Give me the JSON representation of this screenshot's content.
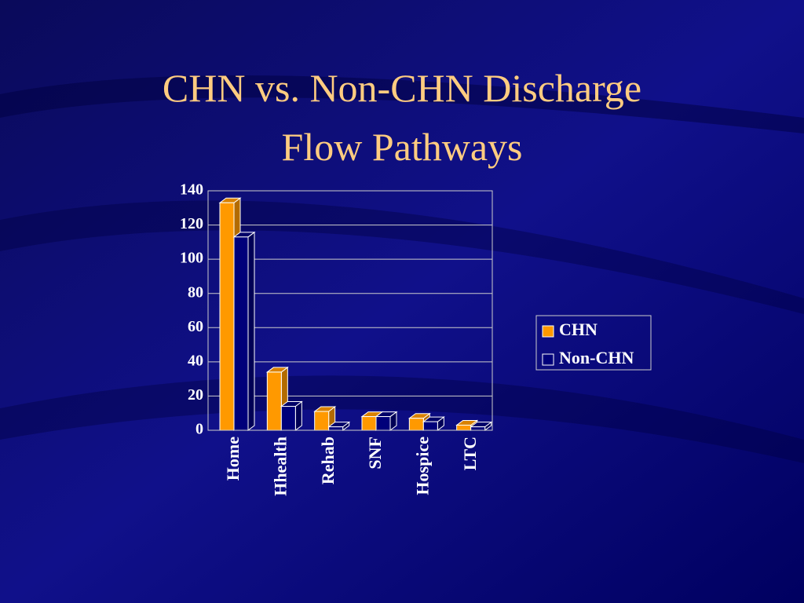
{
  "chart_data": {
    "type": "bar3d",
    "title": "CHN vs. Non-CHN Discharge Flow Pathways",
    "categories": [
      "Home",
      "Hhealth",
      "Rehab",
      "SNF",
      "Hospice",
      "LTC"
    ],
    "series": [
      {
        "name": "CHN",
        "color": "#ff9900",
        "values": [
          133,
          34,
          11,
          8,
          7,
          3
        ]
      },
      {
        "name": "Non-CHN",
        "color": "#00007a",
        "values": [
          113,
          14,
          2,
          8,
          5,
          2
        ]
      }
    ],
    "ylim": [
      0,
      140
    ],
    "yticks": [
      0,
      20,
      40,
      60,
      80,
      100,
      120,
      140
    ],
    "grid": true,
    "legend": "right"
  }
}
